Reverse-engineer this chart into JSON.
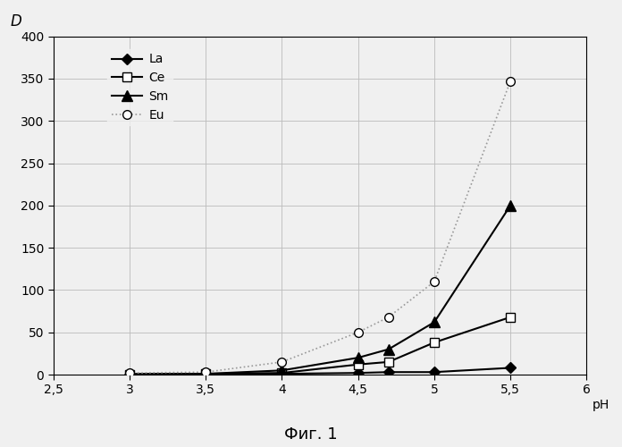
{
  "series": {
    "La": {
      "x": [
        3.0,
        3.5,
        4.0,
        4.5,
        4.7,
        5.0,
        5.5
      ],
      "y": [
        0.5,
        0.5,
        1.0,
        2.0,
        3.0,
        3.0,
        8.0
      ],
      "color": "#000000",
      "marker": "D",
      "markersize": 6,
      "markerfacecolor": "#000000",
      "linestyle": "-",
      "linewidth": 1.5,
      "label": "La"
    },
    "Ce": {
      "x": [
        3.0,
        3.5,
        4.0,
        4.5,
        4.7,
        5.0,
        5.5
      ],
      "y": [
        0.5,
        1.0,
        2.0,
        12.0,
        15.0,
        38.0,
        68.0
      ],
      "color": "#000000",
      "marker": "s",
      "markersize": 7,
      "markerfacecolor": "#ffffff",
      "linestyle": "-",
      "linewidth": 1.5,
      "label": "Ce"
    },
    "Sm": {
      "x": [
        3.0,
        3.5,
        4.0,
        4.5,
        4.7,
        5.0,
        5.5
      ],
      "y": [
        0.5,
        1.0,
        5.0,
        20.0,
        30.0,
        62.0,
        200.0
      ],
      "color": "#000000",
      "marker": "^",
      "markersize": 8,
      "markerfacecolor": "#000000",
      "linestyle": "-",
      "linewidth": 1.5,
      "label": "Sm"
    },
    "Eu": {
      "x": [
        3.0,
        3.5,
        4.0,
        4.5,
        4.7,
        5.0,
        5.5
      ],
      "y": [
        2.0,
        3.0,
        15.0,
        50.0,
        68.0,
        110.0,
        347.0
      ],
      "color": "#999999",
      "marker": "o",
      "markersize": 7,
      "markerfacecolor": "#ffffff",
      "linestyle": ":",
      "linewidth": 1.2,
      "label": "Eu"
    }
  },
  "xlim": [
    2.5,
    6.0
  ],
  "ylim": [
    0,
    400
  ],
  "xticks": [
    2.5,
    3.0,
    3.5,
    4.0,
    4.5,
    5.0,
    5.5,
    6.0
  ],
  "xticklabels": [
    "2,5",
    "3",
    "3,5",
    "4",
    "4,5",
    "5",
    "5,5",
    "6"
  ],
  "yticks": [
    0,
    50,
    100,
    150,
    200,
    250,
    300,
    350,
    400
  ],
  "xlabel": "pH",
  "ylabel": "D",
  "grid": true,
  "background_color": "#f5f5f5",
  "caption": "Фиг. 1",
  "legend_order": [
    "La",
    "Ce",
    "Sm",
    "Eu"
  ]
}
